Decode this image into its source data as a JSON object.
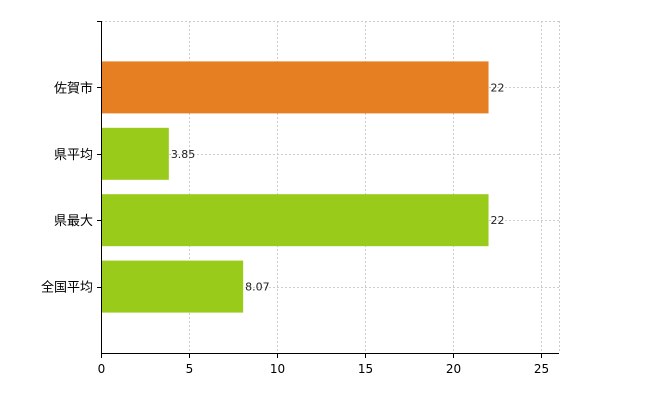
{
  "chart_data": {
    "type": "bar",
    "orientation": "horizontal",
    "categories": [
      "佐賀市",
      "県平均",
      "県最大",
      "全国平均"
    ],
    "values": [
      22,
      3.85,
      22,
      8.07
    ],
    "data_labels": [
      "22",
      "3.85",
      "22",
      "8.07"
    ],
    "colors": [
      "#e67e22",
      "#99cc1a",
      "#99cc1a",
      "#99cc1a"
    ],
    "xlim": [
      0,
      26
    ],
    "xticks": [
      0,
      5,
      10,
      15,
      20,
      25
    ],
    "xtick_labels": [
      "0",
      "5",
      "10",
      "15",
      "20",
      "25"
    ],
    "grid": true,
    "title": "",
    "xlabel": "",
    "ylabel": ""
  }
}
